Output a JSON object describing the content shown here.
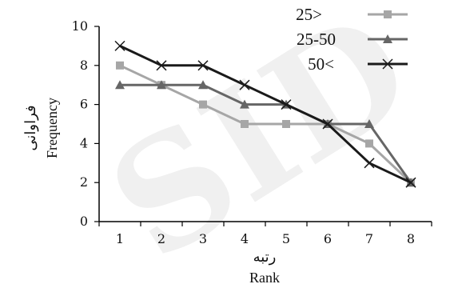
{
  "chart_data": {
    "type": "line",
    "x": [
      1,
      2,
      3,
      4,
      5,
      6,
      7,
      8
    ],
    "xlim": [
      0.5,
      8.5
    ],
    "ylim": [
      0,
      10
    ],
    "yticks": [
      0,
      2,
      4,
      6,
      8,
      10
    ],
    "ylabel": "Frequency",
    "ylabel_fa": "فراوانی",
    "xlabel": "Rank",
    "xlabel_fa": "رتبه",
    "grid": false,
    "legend_position": "top-right",
    "series": [
      {
        "name": "25>",
        "values": [
          8,
          7,
          6,
          5,
          5,
          5,
          4,
          2
        ],
        "color": "#a6a6a6",
        "marker": "square"
      },
      {
        "name": "25-50",
        "values": [
          7,
          7,
          7,
          6,
          6,
          5,
          5,
          2
        ],
        "color": "#666666",
        "marker": "triangle"
      },
      {
        "name": "50<",
        "values": [
          9,
          8,
          8,
          7,
          6,
          5,
          3,
          2
        ],
        "color": "#1a1a1a",
        "marker": "x"
      }
    ]
  },
  "watermark": "SID"
}
